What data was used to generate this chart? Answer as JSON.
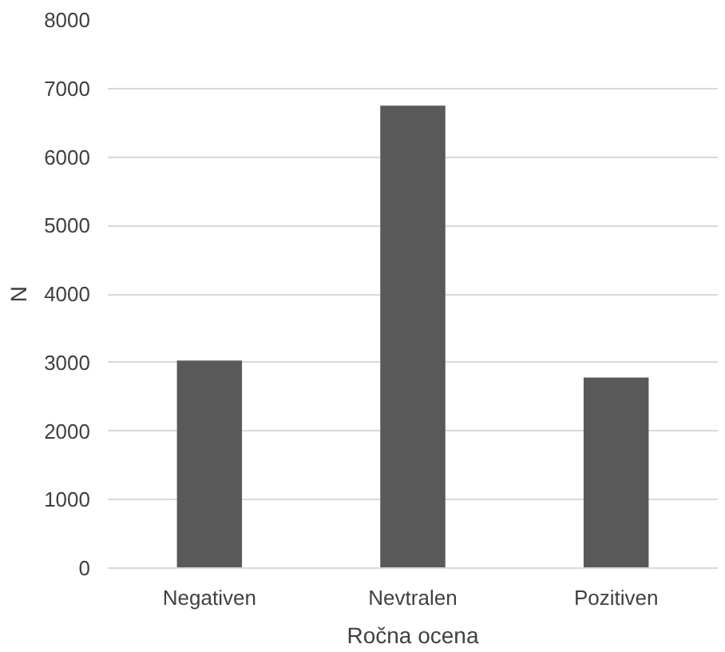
{
  "chart_data": {
    "type": "bar",
    "xlabel": "Ročna ocena",
    "ylabel": "N",
    "categories": [
      "Negativen",
      "Nevtralen",
      "Pozitiven"
    ],
    "values": [
      3030,
      6750,
      2780
    ],
    "color": "#595959",
    "ylim": [
      0,
      8000
    ],
    "yticks": [
      0,
      1000,
      2000,
      3000,
      4000,
      5000,
      6000,
      7000,
      8000
    ],
    "grid": "y"
  }
}
